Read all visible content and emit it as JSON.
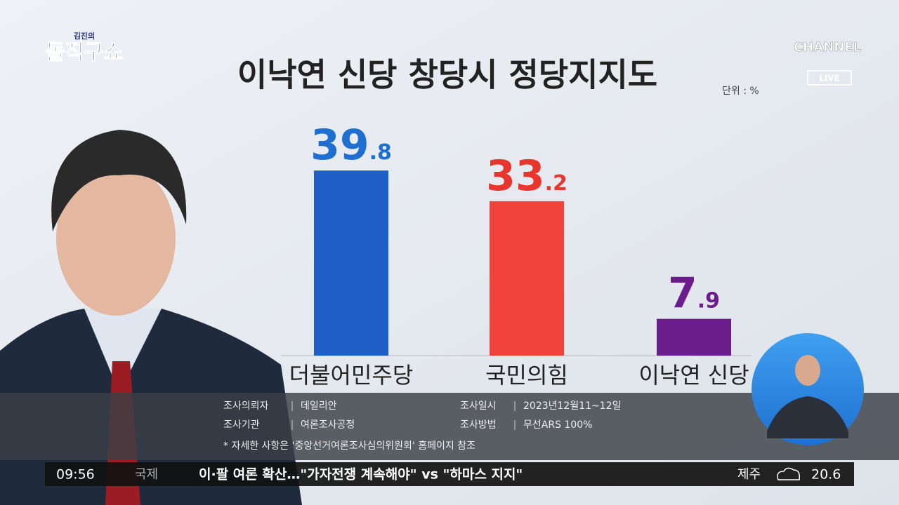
{
  "chart_data": {
    "type": "bar",
    "title": "이낙연 신당 창당시 정당지지도",
    "unit": "단위 : %",
    "categories": [
      "더불어민주당",
      "국민의힘",
      "이낙연 신당"
    ],
    "values": [
      39.8,
      33.2,
      7.9
    ],
    "colors": [
      "#1f5fc8",
      "#f2433a",
      "#6b1d8c"
    ],
    "label_colors": [
      "#1f6fd0",
      "#e8352e",
      "#6b1d8c"
    ]
  },
  "show": {
    "logo_small": "김진의",
    "logo": "돌직구쇼",
    "channel": "CHANNEL",
    "live": "LIVE"
  },
  "notes": {
    "rows": [
      [
        "조사의뢰자",
        "데일리안",
        "조사일시",
        "2023년12월11~12일"
      ],
      [
        "조사기관",
        "여론조사공정",
        "조사방법",
        "무선ARS 100%"
      ]
    ],
    "footnote": "* 자세한 사항은 '중앙선거여론조사심의위원회' 홈페이지 참조"
  },
  "ticker": {
    "time": "09:56",
    "section": "국제",
    "headline": "이·팔 여론 확산…\"가자전쟁 계속해야\" vs \"하마스 지지\"",
    "city": "제주",
    "temp": "20.6"
  }
}
